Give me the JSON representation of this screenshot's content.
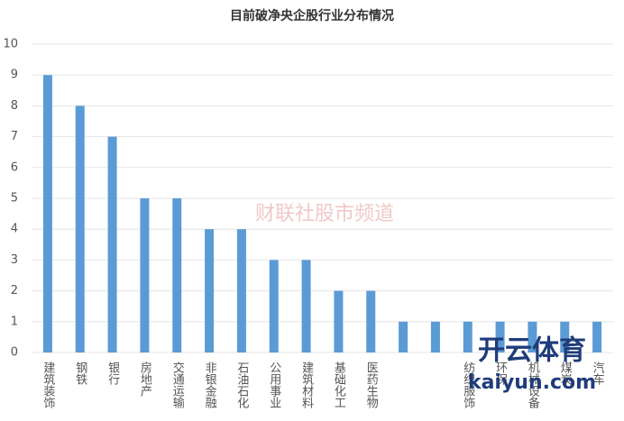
{
  "chart_data": {
    "type": "bar",
    "title": "目前破净央企股行业分布情况",
    "categories": [
      "建筑装饰",
      "钢铁",
      "银行",
      "房地产",
      "交通运输",
      "非银金融",
      "石油石化",
      "公用事业",
      "建筑材料",
      "基础化工",
      "医药生物",
      null,
      null,
      "纺织服饰",
      "环保",
      "机械设备",
      "煤炭",
      "汽车"
    ],
    "values": [
      9,
      8,
      7,
      5,
      5,
      4,
      4,
      3,
      3,
      2,
      2,
      1,
      1,
      1,
      1,
      1,
      1,
      1
    ],
    "color": "#5b9bd5",
    "ylim": [
      0,
      10
    ],
    "yticks": [
      0,
      1,
      2,
      3,
      4,
      5,
      6,
      7,
      8,
      9,
      10
    ],
    "grid": true,
    "watermarks": [
      "财联社股市频道",
      "开云体育",
      "kaiyun.com"
    ]
  }
}
